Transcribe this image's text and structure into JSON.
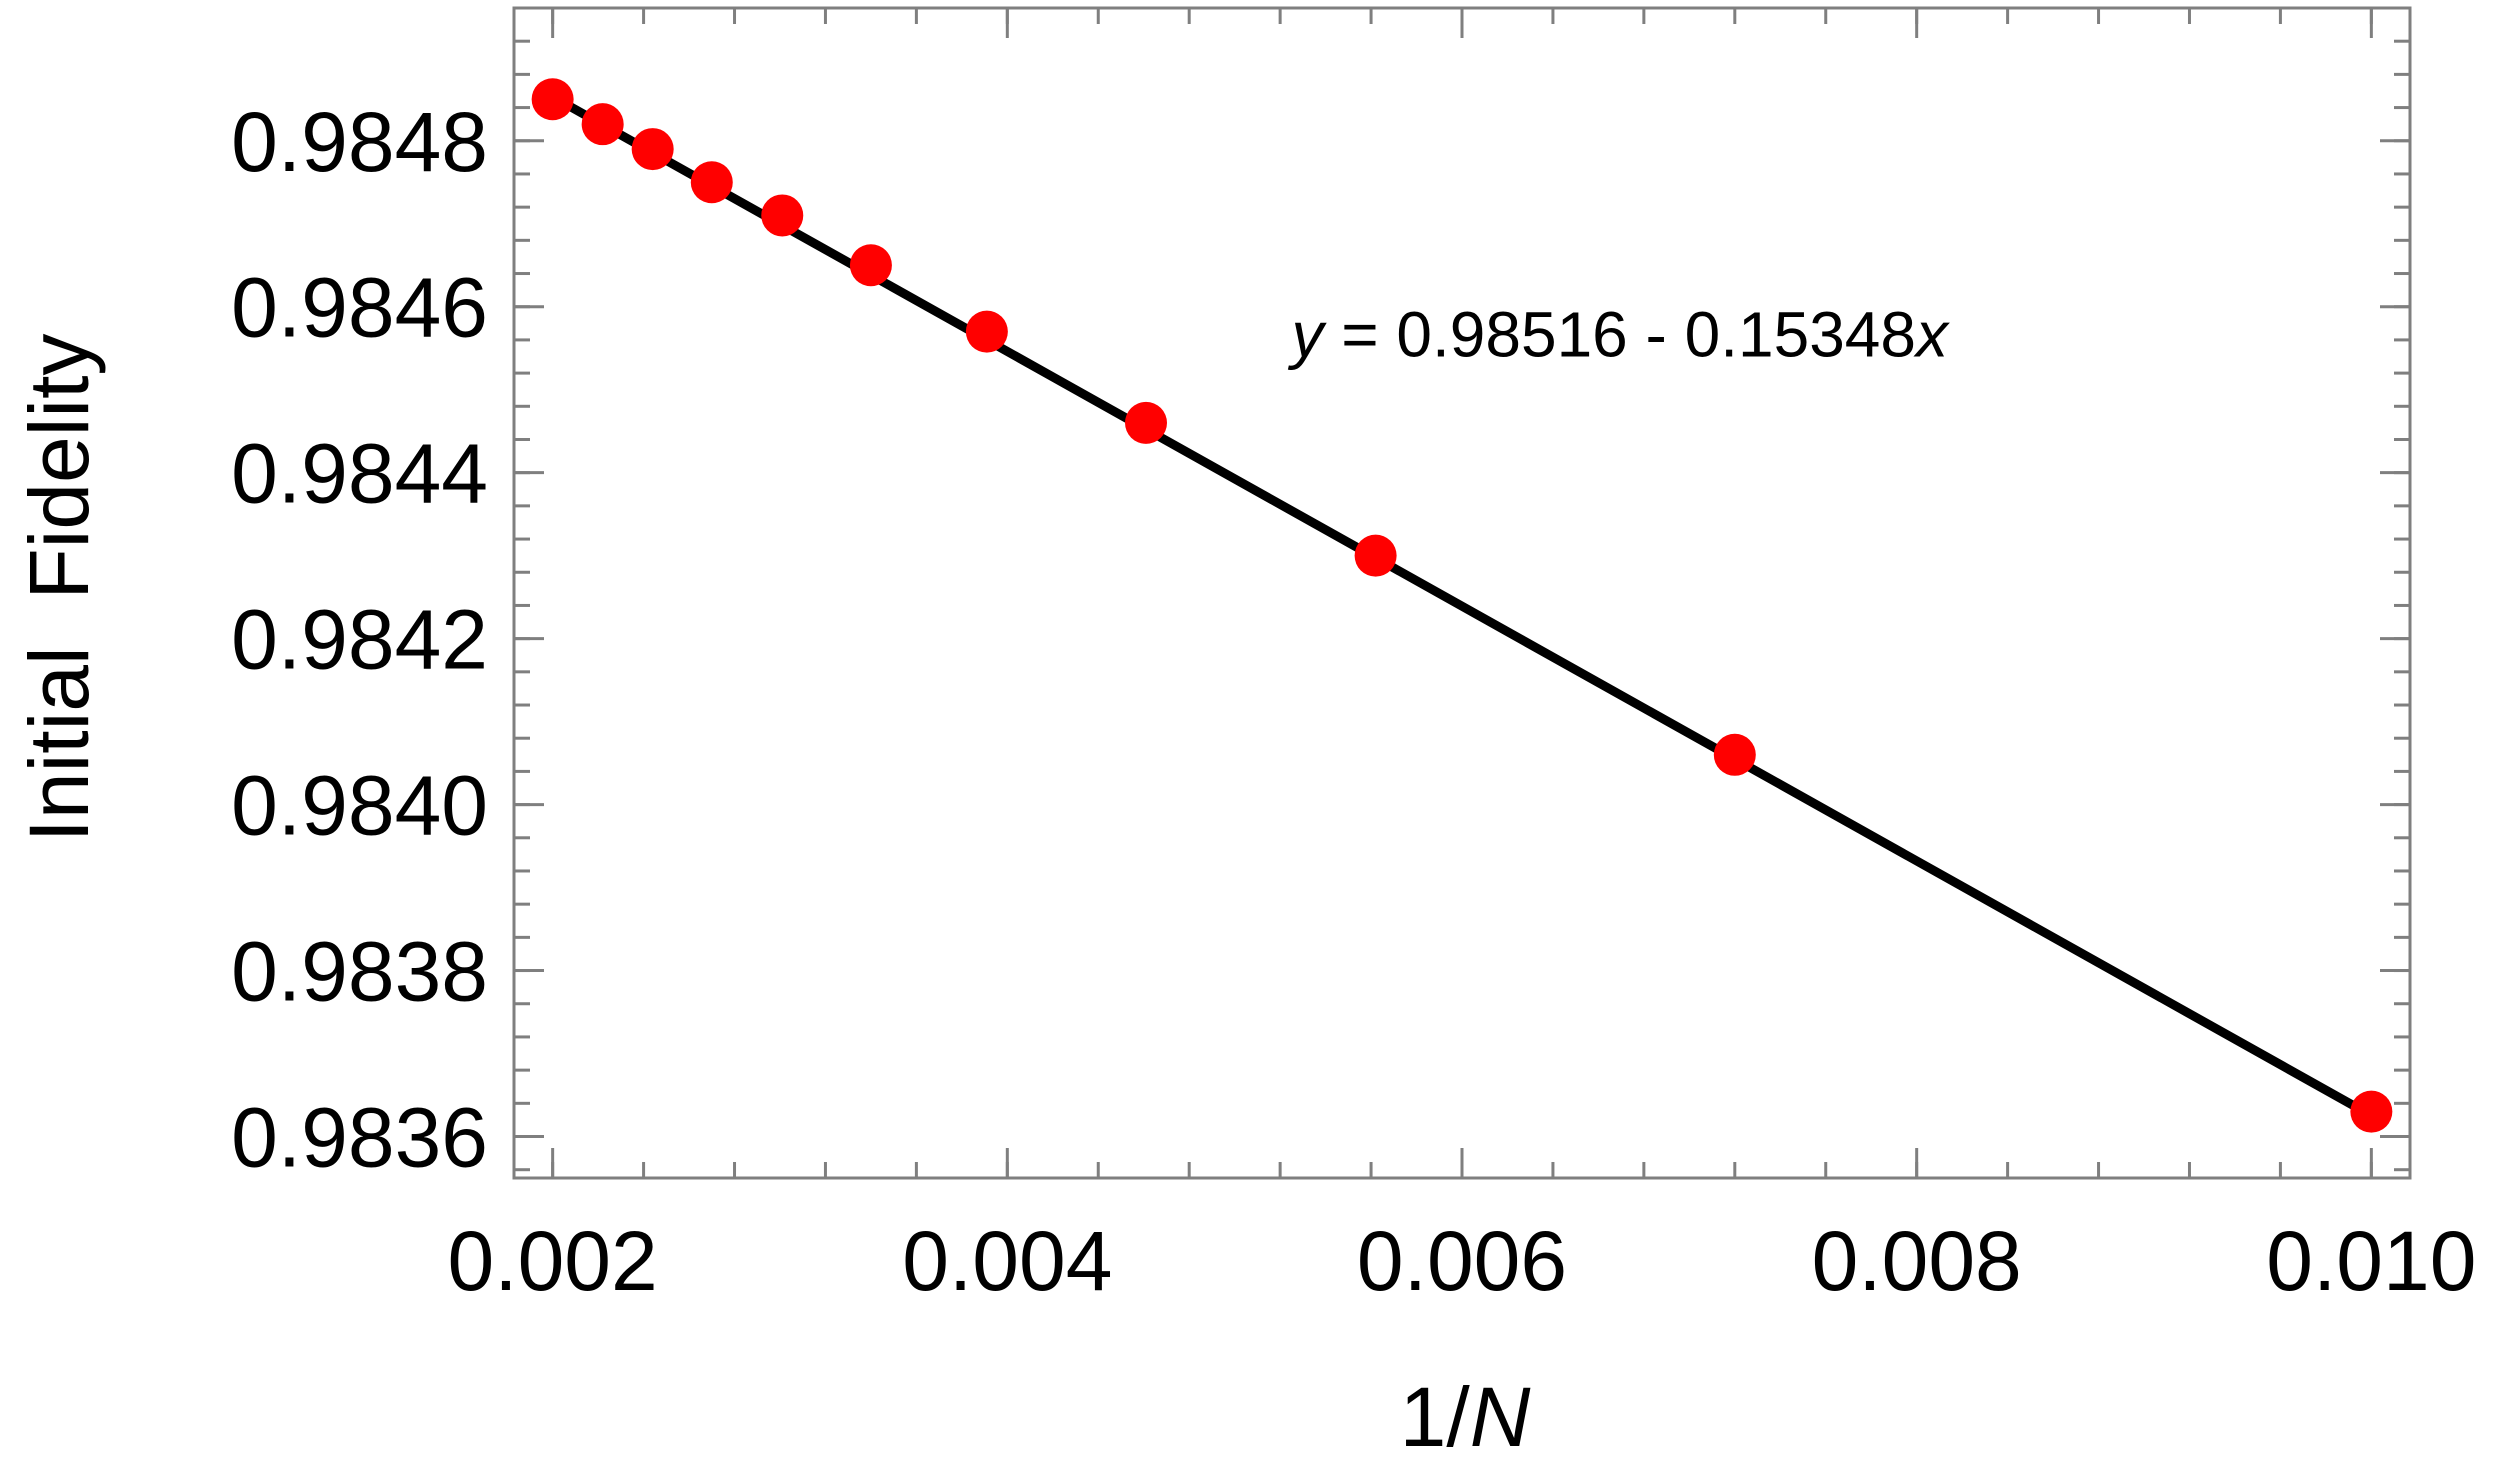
{
  "chart_data": {
    "type": "scatter",
    "title": "",
    "xlabel": {
      "prefix": "1/",
      "var": "N"
    },
    "ylabel": "Initial  Fidelity",
    "xlim": [
      0.00183,
      0.01017
    ],
    "ylim": [
      0.98355,
      0.98496
    ],
    "x_ticks": [
      "0.002",
      "0.004",
      "0.006",
      "0.008",
      "0.010"
    ],
    "x_tick_values": [
      0.002,
      0.004,
      0.006,
      0.008,
      0.01
    ],
    "x_minor_step": 0.0004,
    "y_ticks": [
      "0.9836",
      "0.9838",
      "0.9840",
      "0.9842",
      "0.9844",
      "0.9846",
      "0.9848"
    ],
    "y_tick_values": [
      0.9836,
      0.9838,
      0.984,
      0.9842,
      0.9844,
      0.9846,
      0.9848
    ],
    "y_minor_step": 4e-05,
    "grid": false,
    "series": [
      {
        "kind": "points",
        "color": "#ff0000",
        "x": [
          0.002,
          0.00222,
          0.00244,
          0.0027,
          0.00301,
          0.0034,
          0.00391,
          0.00461,
          0.00562,
          0.0072,
          0.01
        ],
        "y": [
          0.98485,
          0.98482,
          0.98479,
          0.98475,
          0.98471,
          0.98465,
          0.98457,
          0.98446,
          0.9843,
          0.98406,
          0.98363
        ]
      },
      {
        "kind": "fit-line",
        "color": "#000000",
        "intercept": 0.98516,
        "slope": -0.15348,
        "x_range": [
          0.002,
          0.01
        ]
      }
    ],
    "annotation": {
      "var_y": "y",
      "text": " = 0.98516 - 0.15348",
      "var_x": "x",
      "data_x": 0.00525,
      "data_y": 0.98454
    }
  }
}
